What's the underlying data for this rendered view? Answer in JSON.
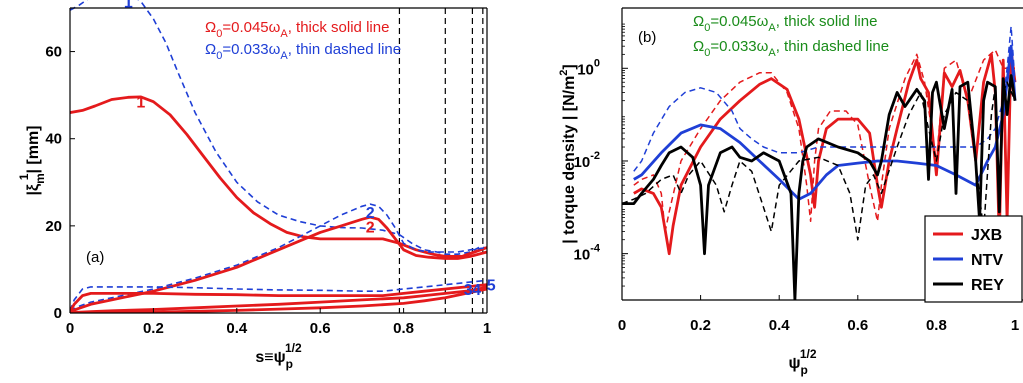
{
  "chart_data": [
    {
      "panel_label": "(a)",
      "type": "line",
      "xlabel_main": "s≡ψ",
      "xlabel_sup": "1/2",
      "xlabel_sub": "p",
      "ylabel_main": "|ξ",
      "ylabel_sup": "1",
      "ylabel_sub": "m",
      "ylabel_end": "| [mm]",
      "xlim": [
        0,
        1
      ],
      "ylim": [
        0,
        70
      ],
      "xticks": [
        "0",
        "0.2",
        "0.4",
        "0.6",
        "0.8",
        "1"
      ],
      "yticks": [
        "0",
        "20",
        "40",
        "60"
      ],
      "vlines": [
        0.79,
        0.9,
        0.965,
        0.99
      ],
      "annotations": [
        {
          "pre": "Ω",
          "sub": "0",
          "mid": "=0.045ω",
          "sub2": "A",
          "post": ", thick solid line",
          "color": "#e41a1c"
        },
        {
          "pre": "Ω",
          "sub": "0",
          "mid": "=0.033ω",
          "sub2": "A",
          "post": ", thin dashed line",
          "color": "#1f3fd6"
        }
      ],
      "mode_labels": [
        {
          "text": "1",
          "x": 0.14,
          "y": 71.5,
          "color": "#1f3fd6"
        },
        {
          "text": "1",
          "x": 0.17,
          "y": 48.5,
          "color": "#e41a1c"
        },
        {
          "text": "2",
          "x": 0.72,
          "y": 23.2,
          "color": "#1f3fd6"
        },
        {
          "text": "2",
          "x": 0.72,
          "y": 19.8,
          "color": "#e41a1c"
        },
        {
          "text": "3",
          "x": 0.955,
          "y": 5.5,
          "color": "#1f3fd6"
        },
        {
          "text": "4",
          "x": 0.975,
          "y": 5.5,
          "color": "#1f3fd6"
        },
        {
          "text": "5",
          "x": 1.01,
          "y": 6.5,
          "color": "#1f3fd6"
        }
      ],
      "series": [
        {
          "style": "dashed",
          "color": "#1f3fd6",
          "x": [
            0,
            0.02,
            0.05,
            0.08,
            0.11,
            0.14,
            0.17,
            0.2,
            0.23,
            0.26,
            0.3,
            0.35,
            0.4,
            0.45,
            0.5,
            0.55,
            0.6,
            0.65,
            0.7,
            0.75,
            0.79,
            0.82,
            0.85,
            0.88,
            0.9,
            0.93,
            0.96,
            0.98,
            1.0
          ],
          "y": [
            69.5,
            70.5,
            72.5,
            73.5,
            74.0,
            73.5,
            71.5,
            67.5,
            62.0,
            55.0,
            46.0,
            37.0,
            30.0,
            25.5,
            22.5,
            21.0,
            20.0,
            19.6,
            19.5,
            19.0,
            18.0,
            16.0,
            14.5,
            14.0,
            13.5,
            13.5,
            14.0,
            15.0,
            15.0
          ]
        },
        {
          "style": "solid",
          "color": "#e41a1c",
          "x": [
            0,
            0.03,
            0.06,
            0.1,
            0.14,
            0.17,
            0.2,
            0.24,
            0.28,
            0.32,
            0.36,
            0.4,
            0.44,
            0.48,
            0.52,
            0.56,
            0.6,
            0.65,
            0.7,
            0.75,
            0.79,
            0.83,
            0.87,
            0.9,
            0.94,
            0.97,
            1.0
          ],
          "y": [
            46.0,
            46.5,
            47.5,
            49.0,
            49.5,
            49.6,
            48.5,
            45.5,
            41.0,
            36.0,
            31.0,
            26.5,
            23.0,
            20.5,
            18.5,
            17.5,
            17.0,
            17.0,
            17.0,
            17.0,
            16.0,
            14.5,
            13.5,
            13.0,
            13.0,
            14.0,
            15.0
          ]
        },
        {
          "style": "dashed",
          "color": "#1f3fd6",
          "x": [
            0,
            0.02,
            0.05,
            0.1,
            0.2,
            0.3,
            0.4,
            0.5,
            0.55,
            0.6,
            0.65,
            0.7,
            0.72,
            0.74,
            0.76,
            0.78,
            0.8,
            0.83,
            0.86,
            0.9,
            0.93,
            0.96,
            1.0
          ],
          "y": [
            0.5,
            1.5,
            2.5,
            3.5,
            5.5,
            8.0,
            11.0,
            15.0,
            17.5,
            20.0,
            22.5,
            24.5,
            25.0,
            24.5,
            22.5,
            19.5,
            16.0,
            14.5,
            14.0,
            14.0,
            14.0,
            14.5,
            15.0
          ]
        },
        {
          "style": "solid",
          "color": "#e41a1c",
          "x": [
            0,
            0.02,
            0.05,
            0.1,
            0.2,
            0.3,
            0.4,
            0.5,
            0.55,
            0.6,
            0.65,
            0.7,
            0.72,
            0.74,
            0.76,
            0.78,
            0.8,
            0.83,
            0.86,
            0.9,
            0.93,
            0.96,
            1.0
          ],
          "y": [
            0.3,
            1.0,
            2.0,
            3.0,
            5.0,
            7.5,
            10.5,
            14.5,
            16.5,
            18.5,
            20.0,
            21.5,
            22.0,
            21.5,
            19.5,
            17.0,
            14.5,
            13.2,
            12.8,
            12.5,
            12.5,
            13.0,
            14.0
          ]
        },
        {
          "style": "dashed",
          "color": "#1f3fd6",
          "x": [
            0,
            0.01,
            0.03,
            0.05,
            0.1,
            0.2,
            0.3,
            0.4,
            0.5,
            0.6,
            0.7,
            0.75,
            0.8,
            0.85,
            0.9,
            0.95,
            1.0
          ],
          "y": [
            0.5,
            3.0,
            5.5,
            6.0,
            6.0,
            6.0,
            5.8,
            5.5,
            5.3,
            5.2,
            5.0,
            5.0,
            5.5,
            6.0,
            6.5,
            7.0,
            7.5
          ]
        },
        {
          "style": "solid",
          "color": "#e41a1c",
          "x": [
            0,
            0.01,
            0.03,
            0.05,
            0.1,
            0.2,
            0.3,
            0.4,
            0.5,
            0.6,
            0.7,
            0.75,
            0.8,
            0.85,
            0.9,
            0.95,
            1.0
          ],
          "y": [
            0.3,
            2.0,
            4.0,
            4.5,
            4.5,
            4.5,
            4.3,
            4.2,
            4.0,
            4.0,
            4.0,
            4.0,
            4.5,
            5.0,
            5.5,
            6.0,
            6.5
          ]
        },
        {
          "style": "solid",
          "color": "#e41a1c",
          "x": [
            0,
            0.05,
            0.1,
            0.2,
            0.3,
            0.4,
            0.5,
            0.6,
            0.7,
            0.8,
            0.85,
            0.9,
            0.95,
            0.98,
            1.0
          ],
          "y": [
            0.1,
            0.3,
            0.5,
            0.8,
            1.2,
            1.6,
            2.0,
            2.5,
            3.0,
            3.5,
            4.0,
            4.5,
            5.0,
            5.5,
            6.0
          ]
        },
        {
          "style": "solid",
          "color": "#e41a1c",
          "x": [
            0,
            0.1,
            0.2,
            0.3,
            0.4,
            0.5,
            0.6,
            0.7,
            0.8,
            0.85,
            0.9,
            0.95,
            1.0
          ],
          "y": [
            0.0,
            0.1,
            0.2,
            0.4,
            0.6,
            0.9,
            1.2,
            1.6,
            2.2,
            2.8,
            3.5,
            4.5,
            5.5
          ]
        }
      ]
    },
    {
      "panel_label": "(b)",
      "type": "line",
      "xlabel_main": "ψ",
      "xlabel_sup": "1/2",
      "xlabel_sub": "p",
      "ylabel_main": "| torque density | [N/m",
      "ylabel_sup": "2",
      "ylabel_end": "]",
      "yscale": "log",
      "xlim": [
        0,
        1
      ],
      "ylim": [
        1e-05,
        20
      ],
      "xticks": [
        "0",
        "0.2",
        "0.4",
        "0.6",
        "0.8",
        "1"
      ],
      "yticks": [
        {
          "base": "10",
          "exp": "0",
          "value": 1
        },
        {
          "base": "10",
          "exp": "-2",
          "value": 0.01
        },
        {
          "base": "10",
          "exp": "-4",
          "value": 0.0001
        }
      ],
      "annotations": [
        {
          "pre": "Ω",
          "sub": "0",
          "mid": "=0.045ω",
          "sub2": "A",
          "post": ", thick solid line",
          "color": "#1a8c1a"
        },
        {
          "pre": "Ω",
          "sub": "0",
          "mid": "=0.033ω",
          "sub2": "A",
          "post": ", thin dashed line",
          "color": "#1a8c1a"
        }
      ],
      "legend": {
        "placement": "bottom-right",
        "entries": [
          {
            "name": "JXB",
            "color": "#e41a1c"
          },
          {
            "name": "NTV",
            "color": "#1f3fd6"
          },
          {
            "name": "REY",
            "color": "#000000"
          }
        ]
      },
      "series": [
        {
          "name": "JXB",
          "style": "solid",
          "color": "#e41a1c",
          "x": [
            0.03,
            0.05,
            0.08,
            0.1,
            0.12,
            0.13,
            0.15,
            0.2,
            0.25,
            0.3,
            0.35,
            0.38,
            0.42,
            0.45,
            0.48,
            0.49,
            0.5,
            0.52,
            0.55,
            0.6,
            0.63,
            0.65,
            0.66,
            0.68,
            0.7,
            0.73,
            0.75,
            0.76,
            0.78,
            0.8,
            0.82,
            0.84,
            0.86,
            0.88,
            0.9,
            0.92,
            0.94,
            0.95,
            0.96,
            0.97,
            0.98,
            0.99,
            1.0
          ],
          "y": [
            0.002,
            0.0025,
            0.002,
            0.001,
            0.0001,
            0.0004,
            0.003,
            0.02,
            0.08,
            0.2,
            0.45,
            0.6,
            0.35,
            0.08,
            0.005,
            0.001,
            0.01,
            0.05,
            0.08,
            0.08,
            0.04,
            0.003,
            0.001,
            0.01,
            0.05,
            0.5,
            1.5,
            0.6,
            0.3,
            0.005,
            0.8,
            0.4,
            0.9,
            0.2,
            0.01,
            0.5,
            2.0,
            0.3,
            0.0002,
            1.5,
            0.0005,
            2.5,
            0.5
          ]
        },
        {
          "name": "JXB",
          "style": "dashed",
          "color": "#e41a1c",
          "x": [
            0.03,
            0.05,
            0.08,
            0.1,
            0.11,
            0.12,
            0.15,
            0.2,
            0.25,
            0.3,
            0.35,
            0.38,
            0.42,
            0.45,
            0.47,
            0.48,
            0.49,
            0.5,
            0.53,
            0.57,
            0.6,
            0.63,
            0.65,
            0.66,
            0.68,
            0.72,
            0.75,
            0.77,
            0.8,
            0.82,
            0.85,
            0.88,
            0.92,
            0.95,
            0.97,
            1.0
          ],
          "y": [
            0.003,
            0.004,
            0.005,
            0.002,
            0.0003,
            0.0008,
            0.01,
            0.05,
            0.2,
            0.5,
            0.8,
            0.8,
            0.3,
            0.05,
            0.003,
            0.0005,
            0.01,
            0.05,
            0.12,
            0.12,
            0.06,
            0.003,
            0.0005,
            0.003,
            0.05,
            0.6,
            2.0,
            0.5,
            0.01,
            1.0,
            1.5,
            0.2,
            1.5,
            2.5,
            1.0,
            1.0
          ]
        },
        {
          "name": "NTV",
          "style": "solid",
          "color": "#1f3fd6",
          "x": [
            0.03,
            0.05,
            0.1,
            0.15,
            0.2,
            0.25,
            0.3,
            0.35,
            0.4,
            0.45,
            0.48,
            0.52,
            0.55,
            0.6,
            0.65,
            0.7,
            0.75,
            0.8,
            0.85,
            0.9,
            0.93,
            0.95,
            0.97,
            0.98,
            0.99,
            1.0
          ],
          "y": [
            0.004,
            0.005,
            0.015,
            0.04,
            0.06,
            0.05,
            0.025,
            0.01,
            0.004,
            0.0015,
            0.002,
            0.005,
            0.008,
            0.009,
            0.01,
            0.01,
            0.009,
            0.008,
            0.005,
            0.003,
            0.01,
            0.02,
            0.1,
            0.5,
            3.0,
            0.2
          ]
        },
        {
          "name": "NTV",
          "style": "dashed",
          "color": "#1f3fd6",
          "x": [
            0.03,
            0.05,
            0.08,
            0.12,
            0.16,
            0.2,
            0.24,
            0.28,
            0.3,
            0.33,
            0.36,
            0.4,
            0.45,
            0.5,
            0.55,
            0.6,
            0.65,
            0.7,
            0.75,
            0.8,
            0.85,
            0.9,
            0.93,
            0.95,
            0.97,
            0.98,
            0.99,
            1.0
          ],
          "y": [
            0.006,
            0.01,
            0.04,
            0.15,
            0.3,
            0.38,
            0.3,
            0.12,
            0.05,
            0.03,
            0.02,
            0.015,
            0.015,
            0.02,
            0.02,
            0.02,
            0.02,
            0.02,
            0.02,
            0.02,
            0.02,
            0.02,
            0.03,
            0.05,
            0.2,
            1.0,
            8.0,
            0.5
          ]
        },
        {
          "name": "REY",
          "style": "solid",
          "color": "#000000",
          "x": [
            0.0,
            0.03,
            0.05,
            0.08,
            0.1,
            0.12,
            0.15,
            0.18,
            0.2,
            0.21,
            0.22,
            0.25,
            0.28,
            0.3,
            0.33,
            0.36,
            0.4,
            0.43,
            0.44,
            0.45,
            0.46,
            0.47,
            0.5,
            0.55,
            0.6,
            0.63,
            0.65,
            0.66,
            0.68,
            0.7,
            0.72,
            0.75,
            0.77,
            0.78,
            0.79,
            0.8,
            0.82,
            0.84,
            0.85,
            0.86,
            0.88,
            0.9,
            0.91,
            0.92,
            0.93,
            0.95,
            0.96,
            0.97,
            0.98,
            0.99,
            1.0
          ],
          "y": [
            0.0012,
            0.0012,
            0.002,
            0.004,
            0.008,
            0.015,
            0.02,
            0.012,
            0.003,
            0.0001,
            0.003,
            0.015,
            0.02,
            0.012,
            0.01,
            0.015,
            0.01,
            0.002,
            1e-05,
            0.002,
            0.01,
            0.02,
            0.03,
            0.02,
            0.015,
            0.01,
            0.005,
            0.01,
            0.1,
            0.3,
            0.15,
            0.35,
            0.2,
            0.004,
            0.3,
            0.5,
            0.05,
            0.35,
            0.002,
            0.4,
            0.5,
            0.01,
            0.0005,
            0.2,
            0.5,
            0.4,
            0.0008,
            0.6,
            0.1,
            0.7,
            0.2
          ]
        },
        {
          "name": "REY",
          "style": "dashed",
          "color": "#000000",
          "x": [
            0.0,
            0.03,
            0.06,
            0.1,
            0.13,
            0.15,
            0.17,
            0.2,
            0.24,
            0.26,
            0.28,
            0.3,
            0.33,
            0.36,
            0.38,
            0.4,
            0.45,
            0.5,
            0.55,
            0.58,
            0.6,
            0.62,
            0.64,
            0.66,
            0.7,
            0.73,
            0.76,
            0.78,
            0.8,
            0.82,
            0.85,
            0.88,
            0.9,
            0.92,
            0.94,
            0.95,
            0.96,
            0.97,
            0.98,
            1.0
          ],
          "y": [
            0.0012,
            0.0015,
            0.002,
            0.004,
            0.005,
            0.002,
            0.005,
            0.01,
            0.003,
            0.0008,
            0.003,
            0.01,
            0.006,
            0.001,
            0.0003,
            0.003,
            0.01,
            0.012,
            0.008,
            0.002,
            0.0002,
            0.003,
            0.005,
            0.002,
            0.02,
            0.1,
            0.3,
            0.05,
            0.01,
            0.1,
            0.3,
            0.2,
            0.01,
            0.0003,
            0.1,
            0.4,
            0.001,
            0.3,
            0.5,
            0.2
          ]
        }
      ]
    }
  ]
}
